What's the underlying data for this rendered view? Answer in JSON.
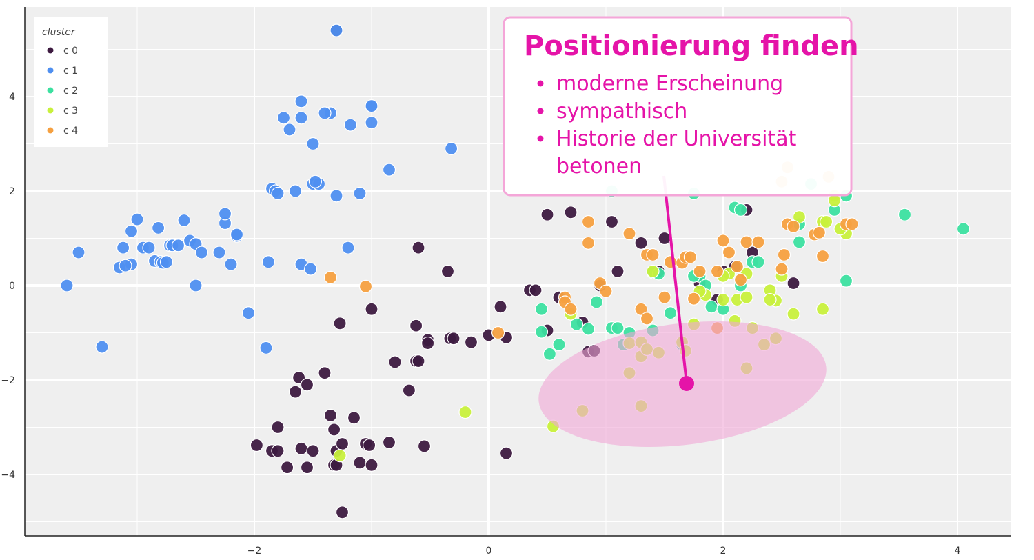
{
  "chart_data": {
    "type": "scatter",
    "xlim": [
      -4,
      4.5
    ],
    "ylim": [
      -5.2,
      5.9
    ],
    "x_ticks": [
      -2,
      0,
      2,
      4
    ],
    "y_ticks": [
      -4,
      -2,
      0,
      2,
      4
    ],
    "x_tick_labels": [
      "−2",
      "0",
      "2",
      "4"
    ],
    "y_tick_labels": [
      "−4",
      "−2",
      "0",
      "2",
      "4"
    ],
    "grid": true,
    "background": "#efefef",
    "legend": {
      "title": "cluster",
      "position": "top-left",
      "entries": [
        "c 0",
        "c 1",
        "c 2",
        "c 3",
        "c 4"
      ]
    },
    "series": [
      {
        "name": "c 0",
        "color": "#3d1a40",
        "points": [
          [
            -1.3,
            5.4
          ],
          [
            -0.6,
            0.8
          ],
          [
            -0.35,
            0.3
          ],
          [
            -1.27,
            -0.8
          ],
          [
            -1.0,
            -0.5
          ],
          [
            -0.62,
            -0.85
          ],
          [
            -0.52,
            -1.15
          ],
          [
            -0.52,
            -1.22
          ],
          [
            -0.33,
            -1.12
          ],
          [
            -0.3,
            -1.12
          ],
          [
            -0.15,
            -1.2
          ],
          [
            -0.62,
            -1.6
          ],
          [
            -0.6,
            -1.6
          ],
          [
            -0.8,
            -1.62
          ],
          [
            -0.68,
            -2.22
          ],
          [
            -1.62,
            -1.95
          ],
          [
            -1.55,
            -2.1
          ],
          [
            -1.65,
            -2.25
          ],
          [
            -1.4,
            -1.85
          ],
          [
            -1.98,
            -3.38
          ],
          [
            -1.85,
            -3.5
          ],
          [
            -1.8,
            -3.5
          ],
          [
            -1.8,
            -3.0
          ],
          [
            -1.72,
            -3.85
          ],
          [
            -1.6,
            -3.45
          ],
          [
            -1.5,
            -3.5
          ],
          [
            -1.55,
            -3.85
          ],
          [
            -1.35,
            -2.75
          ],
          [
            -1.32,
            -3.05
          ],
          [
            -1.3,
            -3.5
          ],
          [
            -1.32,
            -3.8
          ],
          [
            -1.3,
            -3.8
          ],
          [
            -1.25,
            -3.35
          ],
          [
            -1.15,
            -2.8
          ],
          [
            -1.1,
            -3.75
          ],
          [
            -1.05,
            -3.35
          ],
          [
            -1.0,
            -3.8
          ],
          [
            -1.02,
            -3.38
          ],
          [
            -0.85,
            -3.32
          ],
          [
            -0.55,
            -3.4
          ],
          [
            -1.25,
            -4.8
          ],
          [
            0.1,
            -0.45
          ],
          [
            0.15,
            -1.1
          ],
          [
            0.0,
            -1.05
          ],
          [
            0.35,
            -0.1
          ],
          [
            0.4,
            -0.1
          ],
          [
            0.5,
            -0.95
          ],
          [
            0.6,
            -0.25
          ],
          [
            0.85,
            -1.4
          ],
          [
            0.9,
            -1.38
          ],
          [
            0.8,
            -0.78
          ],
          [
            0.95,
            0.0
          ],
          [
            1.1,
            0.3
          ],
          [
            1.3,
            0.9
          ],
          [
            1.45,
            0.3
          ],
          [
            1.5,
            1.0
          ],
          [
            0.5,
            1.5
          ],
          [
            0.7,
            1.55
          ],
          [
            1.05,
            1.35
          ],
          [
            1.8,
            0.05
          ],
          [
            1.95,
            -0.3
          ],
          [
            2.0,
            0.3
          ],
          [
            2.1,
            0.4
          ],
          [
            2.25,
            0.7
          ],
          [
            2.2,
            1.6
          ],
          [
            2.6,
            0.05
          ],
          [
            0.15,
            -3.55
          ]
        ]
      },
      {
        "name": "c 1",
        "color": "#4f8ff0",
        "points": [
          [
            -1.3,
            5.4
          ],
          [
            -1.6,
            3.9
          ],
          [
            -1.75,
            3.55
          ],
          [
            -1.35,
            3.65
          ],
          [
            -1.4,
            3.65
          ],
          [
            -1.18,
            3.4
          ],
          [
            -1.0,
            3.8
          ],
          [
            -1.0,
            3.8
          ],
          [
            -1.0,
            3.45
          ],
          [
            -1.7,
            3.3
          ],
          [
            -1.6,
            3.55
          ],
          [
            -1.5,
            3.0
          ],
          [
            -0.32,
            2.9
          ],
          [
            -0.85,
            2.45
          ],
          [
            -1.65,
            2.0
          ],
          [
            -1.85,
            2.05
          ],
          [
            -1.82,
            2.0
          ],
          [
            -1.8,
            1.95
          ],
          [
            -1.5,
            2.15
          ],
          [
            -1.45,
            2.15
          ],
          [
            -1.48,
            2.2
          ],
          [
            -1.3,
            1.9
          ],
          [
            -1.1,
            1.95
          ],
          [
            -3.5,
            0.7
          ],
          [
            -3.15,
            0.38
          ],
          [
            -3.05,
            1.15
          ],
          [
            -3.0,
            1.4
          ],
          [
            -3.12,
            0.8
          ],
          [
            -3.05,
            0.45
          ],
          [
            -3.1,
            0.42
          ],
          [
            -2.95,
            0.8
          ],
          [
            -2.9,
            0.8
          ],
          [
            -2.85,
            0.52
          ],
          [
            -2.8,
            0.5
          ],
          [
            -2.78,
            0.48
          ],
          [
            -2.75,
            0.5
          ],
          [
            -2.82,
            1.22
          ],
          [
            -2.72,
            0.85
          ],
          [
            -2.7,
            0.85
          ],
          [
            -2.65,
            0.85
          ],
          [
            -2.6,
            1.38
          ],
          [
            -2.55,
            0.95
          ],
          [
            -2.5,
            0.88
          ],
          [
            -2.45,
            0.7
          ],
          [
            -2.3,
            0.7
          ],
          [
            -2.25,
            1.32
          ],
          [
            -2.25,
            1.52
          ],
          [
            -2.15,
            1.05
          ],
          [
            -2.15,
            1.08
          ],
          [
            -2.2,
            0.45
          ],
          [
            -1.88,
            0.5
          ],
          [
            -1.6,
            0.45
          ],
          [
            -1.52,
            0.35
          ],
          [
            -1.2,
            0.8
          ],
          [
            -3.6,
            0.0
          ],
          [
            -2.5,
            0.0
          ],
          [
            -3.3,
            -1.3
          ],
          [
            -2.05,
            -0.58
          ],
          [
            -1.9,
            -1.32
          ]
        ]
      },
      {
        "name": "c 2",
        "color": "#3ce0a0",
        "points": [
          [
            1.05,
            2.0
          ],
          [
            1.75,
            1.95
          ],
          [
            2.1,
            1.65
          ],
          [
            2.15,
            1.6
          ],
          [
            2.75,
            2.15
          ],
          [
            3.05,
            1.9
          ],
          [
            3.55,
            1.5
          ],
          [
            4.05,
            1.2
          ],
          [
            2.65,
            1.3
          ],
          [
            2.65,
            0.92
          ],
          [
            2.95,
            1.6
          ],
          [
            2.25,
            0.5
          ],
          [
            1.8,
            0.2
          ],
          [
            1.85,
            0.0
          ],
          [
            2.15,
            0.0
          ],
          [
            3.05,
            0.1
          ],
          [
            0.45,
            -0.5
          ],
          [
            0.45,
            -0.98
          ],
          [
            0.6,
            -1.25
          ],
          [
            0.52,
            -1.45
          ],
          [
            0.75,
            -0.82
          ],
          [
            0.85,
            -0.92
          ],
          [
            0.92,
            -0.35
          ],
          [
            1.05,
            -0.9
          ],
          [
            1.1,
            -0.9
          ],
          [
            1.15,
            -1.25
          ],
          [
            1.2,
            -1.0
          ],
          [
            1.4,
            -0.95
          ],
          [
            1.55,
            -0.58
          ],
          [
            1.4,
            0.28
          ],
          [
            1.45,
            0.25
          ],
          [
            1.65,
            -1.25
          ],
          [
            1.75,
            0.2
          ],
          [
            1.9,
            -0.45
          ],
          [
            2.0,
            -0.5
          ],
          [
            2.3,
            0.5
          ]
        ]
      },
      {
        "name": "c 3",
        "color": "#c8f03c",
        "points": [
          [
            2.95,
            1.9
          ],
          [
            2.95,
            1.8
          ],
          [
            2.65,
            1.45
          ],
          [
            2.85,
            1.35
          ],
          [
            2.88,
            1.35
          ],
          [
            3.05,
            1.1
          ],
          [
            3.0,
            1.2
          ],
          [
            2.5,
            0.2
          ],
          [
            2.4,
            -0.1
          ],
          [
            2.45,
            -0.32
          ],
          [
            2.4,
            -0.3
          ],
          [
            2.6,
            -0.6
          ],
          [
            2.85,
            -0.5
          ],
          [
            2.2,
            0.25
          ],
          [
            2.05,
            0.25
          ],
          [
            2.0,
            0.2
          ],
          [
            2.12,
            -0.3
          ],
          [
            2.0,
            -0.3
          ],
          [
            2.2,
            -0.25
          ],
          [
            1.85,
            -0.2
          ],
          [
            1.8,
            -0.12
          ],
          [
            1.75,
            -0.82
          ],
          [
            2.1,
            -0.75
          ],
          [
            2.25,
            -0.9
          ],
          [
            2.35,
            -1.25
          ],
          [
            2.45,
            -1.12
          ],
          [
            2.2,
            -1.75
          ],
          [
            1.4,
            0.3
          ],
          [
            1.2,
            -1.22
          ],
          [
            1.3,
            -1.2
          ],
          [
            1.3,
            -1.5
          ],
          [
            1.35,
            -1.35
          ],
          [
            1.45,
            -1.42
          ],
          [
            1.65,
            -1.2
          ],
          [
            1.68,
            -1.38
          ],
          [
            1.2,
            -1.85
          ],
          [
            1.3,
            -2.55
          ],
          [
            0.8,
            -2.65
          ],
          [
            0.55,
            -2.98
          ],
          [
            -0.2,
            -2.68
          ],
          [
            -1.27,
            -3.6
          ],
          [
            0.7,
            -0.6
          ]
        ]
      },
      {
        "name": "c 4",
        "color": "#f5a040",
        "points": [
          [
            -1.35,
            0.17
          ],
          [
            -1.05,
            -0.02
          ],
          [
            0.08,
            -1.0
          ],
          [
            0.65,
            -0.25
          ],
          [
            0.65,
            -0.35
          ],
          [
            0.7,
            -0.5
          ],
          [
            0.85,
            1.35
          ],
          [
            0.85,
            0.9
          ],
          [
            0.95,
            0.05
          ],
          [
            1.0,
            -0.12
          ],
          [
            1.2,
            1.1
          ],
          [
            1.35,
            0.65
          ],
          [
            1.4,
            0.65
          ],
          [
            1.5,
            -0.25
          ],
          [
            1.3,
            -0.5
          ],
          [
            1.35,
            -0.7
          ],
          [
            1.55,
            0.5
          ],
          [
            1.65,
            0.48
          ],
          [
            1.68,
            0.6
          ],
          [
            1.72,
            0.6
          ],
          [
            1.75,
            -0.28
          ],
          [
            1.8,
            0.3
          ],
          [
            1.95,
            0.3
          ],
          [
            2.0,
            0.95
          ],
          [
            2.05,
            0.7
          ],
          [
            2.12,
            0.4
          ],
          [
            2.2,
            0.92
          ],
          [
            2.3,
            0.92
          ],
          [
            2.15,
            0.12
          ],
          [
            2.5,
            0.35
          ],
          [
            2.52,
            0.65
          ],
          [
            2.55,
            1.3
          ],
          [
            2.6,
            1.25
          ],
          [
            2.78,
            1.08
          ],
          [
            2.82,
            1.12
          ],
          [
            2.85,
            0.62
          ],
          [
            3.05,
            1.3
          ],
          [
            3.1,
            1.3
          ],
          [
            2.55,
            2.5
          ],
          [
            2.9,
            2.3
          ],
          [
            2.5,
            2.2
          ],
          [
            1.95,
            -0.9
          ]
        ]
      }
    ]
  },
  "annotation": {
    "title": "Positionierung finden",
    "bullets": [
      "moderne Erscheinung",
      "sympathisch",
      "Historie der Universität",
      "betonen"
    ],
    "color": "#e514a8"
  }
}
